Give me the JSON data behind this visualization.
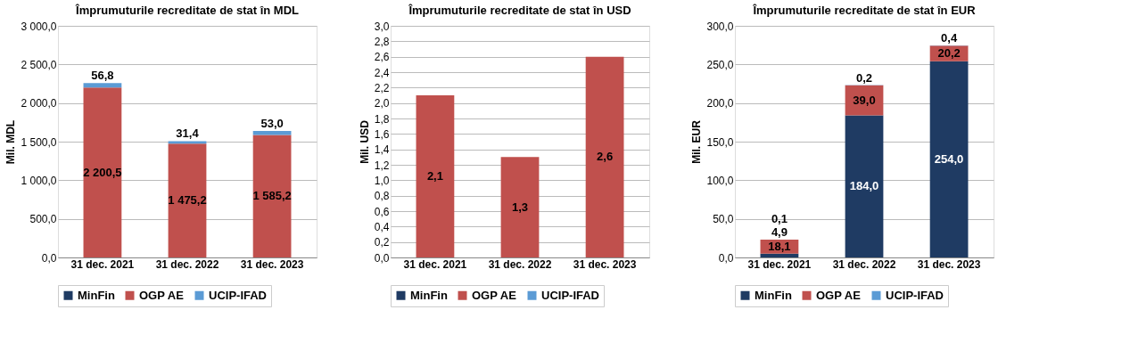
{
  "chart_data": [
    {
      "type": "bar",
      "title": "Împrumuturile recreditate de stat în MDL",
      "ylabel": "Mil. MDL",
      "categories": [
        "31 dec. 2021",
        "31 dec. 2022",
        "31 dec. 2023"
      ],
      "stacked": true,
      "legend": "bottom",
      "grid": "y",
      "ylim": [
        0,
        3000
      ],
      "yticks": [
        {
          "value": 0,
          "label": "0,0"
        },
        {
          "value": 500,
          "label": "500,0"
        },
        {
          "value": 1000,
          "label": "1 000,0"
        },
        {
          "value": 1500,
          "label": "1 500,0"
        },
        {
          "value": 2000,
          "label": "2 000,0"
        },
        {
          "value": 2500,
          "label": "2 500,0"
        },
        {
          "value": 3000,
          "label": "3 000,0"
        }
      ],
      "series": [
        {
          "name": "MinFin",
          "color": "#1f3b63",
          "values": [
            null,
            null,
            null
          ]
        },
        {
          "name": "OGP AE",
          "color": "#c0504d",
          "values": [
            2200.5,
            1475.2,
            1585.2
          ],
          "value_labels": [
            "2 200,5",
            "1 475,2",
            "1 585,2"
          ]
        },
        {
          "name": "UCIP-IFAD",
          "color": "#5b9bd5",
          "values": [
            56.8,
            31.4,
            53.0
          ],
          "value_labels": [
            "56,8",
            "31,4",
            "53,0"
          ]
        }
      ]
    },
    {
      "type": "bar",
      "title": "Împrumuturile recreditate de stat în USD",
      "ylabel": "Mil. USD",
      "categories": [
        "31 dec. 2021",
        "31 dec. 2022",
        "31 dec. 2023"
      ],
      "stacked": true,
      "legend": "bottom",
      "grid": "y",
      "ylim": [
        0,
        3.0
      ],
      "yticks": [
        {
          "value": 0,
          "label": "0,0"
        },
        {
          "value": 0.2,
          "label": "0,2"
        },
        {
          "value": 0.4,
          "label": "0,4"
        },
        {
          "value": 0.6,
          "label": "0,6"
        },
        {
          "value": 0.8,
          "label": "0,8"
        },
        {
          "value": 1.0,
          "label": "1,0"
        },
        {
          "value": 1.2,
          "label": "1,2"
        },
        {
          "value": 1.4,
          "label": "1,4"
        },
        {
          "value": 1.6,
          "label": "1,6"
        },
        {
          "value": 1.8,
          "label": "1,8"
        },
        {
          "value": 2.0,
          "label": "2,0"
        },
        {
          "value": 2.2,
          "label": "2,2"
        },
        {
          "value": 2.4,
          "label": "2,4"
        },
        {
          "value": 2.6,
          "label": "2,6"
        },
        {
          "value": 2.8,
          "label": "2,8"
        },
        {
          "value": 3.0,
          "label": "3,0"
        }
      ],
      "series": [
        {
          "name": "MinFin",
          "color": "#1f3b63",
          "values": [
            null,
            null,
            null
          ]
        },
        {
          "name": "OGP AE",
          "color": "#c0504d",
          "values": [
            2.1,
            1.3,
            2.6
          ],
          "value_labels": [
            "2,1",
            "1,3",
            "2,6"
          ]
        },
        {
          "name": "UCIP-IFAD",
          "color": "#5b9bd5",
          "values": [
            null,
            null,
            null
          ]
        }
      ]
    },
    {
      "type": "bar",
      "title": "Împrumuturile recreditate de stat în EUR",
      "ylabel": "Mil. EUR",
      "categories": [
        "31 dec. 2021",
        "31 dec. 2022",
        "31 dec. 2023"
      ],
      "stacked": true,
      "legend": "bottom",
      "grid": "y",
      "ylim": [
        0,
        300
      ],
      "yticks": [
        {
          "value": 0,
          "label": "0,0"
        },
        {
          "value": 50,
          "label": "50,0"
        },
        {
          "value": 100,
          "label": "100,0"
        },
        {
          "value": 150,
          "label": "150,0"
        },
        {
          "value": 200,
          "label": "200,0"
        },
        {
          "value": 250,
          "label": "250,0"
        },
        {
          "value": 300,
          "label": "300,0"
        }
      ],
      "series": [
        {
          "name": "MinFin",
          "color": "#1f3b63",
          "values": [
            4.9,
            184.0,
            254.0
          ],
          "value_labels": [
            "4,9",
            "184,0",
            "254,0"
          ]
        },
        {
          "name": "OGP AE",
          "color": "#c0504d",
          "values": [
            18.1,
            39.0,
            20.2
          ],
          "value_labels": [
            "18,1",
            "39,0",
            "20,2"
          ]
        },
        {
          "name": "UCIP-IFAD",
          "color": "#5b9bd5",
          "values": [
            0.1,
            0.2,
            0.4
          ],
          "value_labels": [
            "0,1",
            "0,2",
            "0,4"
          ]
        }
      ]
    }
  ]
}
